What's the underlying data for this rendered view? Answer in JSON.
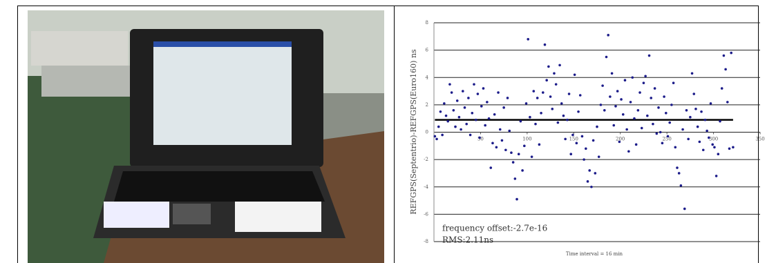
{
  "chart_data": {
    "type": "scatter",
    "ylabel": "REFGPS(Septentrio)-REFGPS(Euro160) ns",
    "xlabel": "Time interval = 16 min",
    "annotations": [
      "frequency offset:-2.7e-16",
      "RMS:2.11ns"
    ],
    "xlim": [
      0,
      350
    ],
    "xticks": [
      50,
      100,
      150,
      200,
      250,
      300,
      350
    ],
    "ylim": [
      -8,
      8
    ],
    "yticks": [
      8,
      6,
      4,
      2,
      0,
      -2,
      -4,
      -6,
      -8
    ],
    "grid": true,
    "mean_line": 0.9,
    "series": [
      {
        "color": "#1c1c8a",
        "x": [
          1,
          3,
          5,
          7,
          9,
          11,
          13,
          15,
          17,
          19,
          21,
          23,
          25,
          27,
          29,
          31,
          33,
          35,
          37,
          39,
          41,
          43,
          45,
          47,
          49,
          51,
          53,
          55,
          57,
          59,
          61,
          63,
          65,
          67,
          69,
          71,
          73,
          75,
          77,
          79,
          81,
          83,
          85,
          87,
          89,
          91,
          93,
          95,
          97,
          99,
          101,
          103,
          105,
          107,
          109,
          111,
          113,
          115,
          117,
          119,
          121,
          123,
          125,
          127,
          129,
          131,
          133,
          135,
          137,
          139,
          141,
          143,
          145,
          147,
          149,
          151,
          153,
          155,
          157,
          159,
          161,
          163,
          165,
          167,
          169,
          171,
          173,
          175,
          177,
          179,
          181,
          183,
          185,
          187,
          189,
          191,
          193,
          195,
          197,
          199,
          201,
          203,
          205,
          207,
          209,
          211,
          213,
          215,
          217,
          219,
          221,
          223,
          225,
          227,
          229,
          231,
          233,
          235,
          237,
          239,
          241,
          243,
          245,
          247,
          249,
          251,
          253,
          255,
          257,
          259,
          261,
          263,
          265,
          267,
          269,
          271,
          273,
          275,
          277,
          279,
          281,
          283,
          285,
          287,
          289,
          291,
          293,
          295,
          297,
          299,
          301,
          303,
          305,
          307,
          309,
          311,
          313,
          315,
          317,
          319,
          321
        ],
        "values": [
          -0.3,
          -0.5,
          0.4,
          1.5,
          -0.2,
          2.1,
          1.2,
          0.8,
          3.5,
          2.9,
          1.6,
          0.4,
          2.3,
          1.1,
          0.2,
          3.0,
          1.8,
          0.6,
          2.5,
          -0.2,
          1.4,
          3.5,
          0.9,
          2.8,
          -0.4,
          1.9,
          3.2,
          0.5,
          2.2,
          1.0,
          -2.6,
          -0.8,
          1.3,
          -1.1,
          2.9,
          0.2,
          -0.6,
          1.8,
          -1.3,
          2.5,
          0.1,
          -1.5,
          -2.2,
          -3.4,
          -4.9,
          -1.6,
          0.8,
          -2.8,
          -1.0,
          2.1,
          6.8,
          1.1,
          -1.8,
          3.0,
          0.6,
          2.5,
          -0.9,
          1.4,
          2.9,
          6.4,
          3.8,
          4.8,
          2.6,
          1.7,
          4.3,
          3.5,
          0.7,
          4.9,
          2.1,
          1.2,
          -0.5,
          0.9,
          2.8,
          -1.6,
          -0.2,
          4.2,
          -0.8,
          1.5,
          2.7,
          -0.3,
          -2.0,
          -1.2,
          -3.6,
          -2.8,
          -4.0,
          -0.6,
          -3.0,
          0.4,
          -1.8,
          2.0,
          3.4,
          1.6,
          5.5,
          7.1,
          2.6,
          4.3,
          0.5,
          1.9,
          3.0,
          -0.7,
          2.4,
          1.3,
          3.8,
          0.2,
          -1.4,
          2.2,
          4.0,
          1.0,
          -0.9,
          1.6,
          2.9,
          0.3,
          3.6,
          4.1,
          1.2,
          5.6,
          2.5,
          0.6,
          3.2,
          -0.1,
          1.8,
          0.0,
          -0.8,
          2.6,
          1.4,
          -0.3,
          0.7,
          2.0,
          3.6,
          -1.1,
          -2.6,
          -3.0,
          -3.9,
          0.2,
          -5.6,
          1.6,
          -0.5,
          1.1,
          4.3,
          2.8,
          1.7,
          0.4,
          -0.7,
          1.5,
          -1.3,
          0.9,
          0.1,
          -0.4,
          2.1,
          -0.9,
          -1.1,
          -3.2,
          -1.6,
          0.8,
          3.2,
          5.6,
          4.6,
          2.2,
          -1.2,
          5.8,
          -1.1
        ]
      }
    ]
  }
}
